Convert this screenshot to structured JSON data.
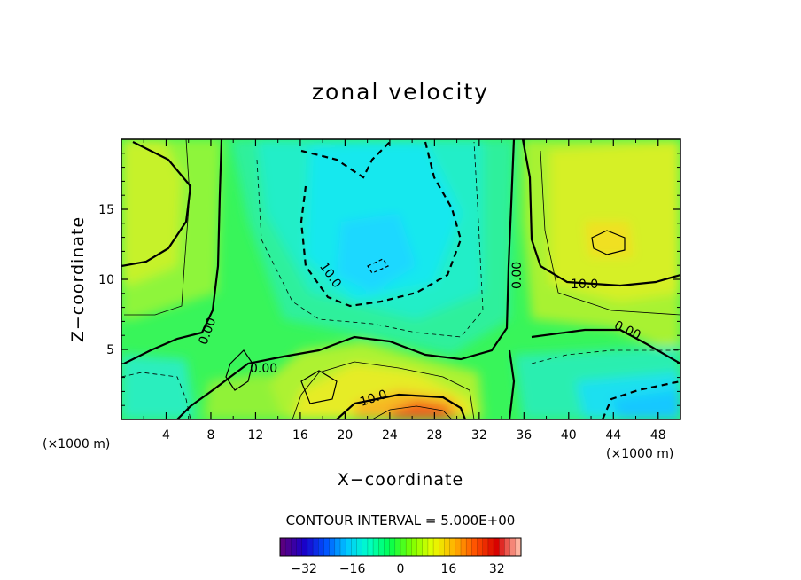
{
  "chart_data": {
    "type": "heatmap",
    "title": "zonal velocity",
    "xlabel": "X−coordinate",
    "ylabel": "Z−coordinate",
    "x_unit_left": "(×1000 m)",
    "x_unit_right": "(×1000 m)",
    "xlim": [
      0,
      50
    ],
    "ylim": [
      0,
      20
    ],
    "x_ticks": [
      "4",
      "8",
      "12",
      "16",
      "20",
      "24",
      "28",
      "32",
      "36",
      "40",
      "44",
      "48"
    ],
    "x_tick_values": [
      4,
      8,
      12,
      16,
      20,
      24,
      28,
      32,
      36,
      40,
      44,
      48
    ],
    "y_ticks": [
      "5",
      "10",
      "15"
    ],
    "y_tick_values": [
      5,
      10,
      15
    ],
    "contour_interval_label": "CONTOUR INTERVAL = 5.000E+00",
    "contour_labels": [
      "10.0",
      "10.0",
      "10.0",
      "0.00",
      "0.00",
      "0.00",
      "0.00"
    ],
    "colorbar": {
      "range": [
        -40,
        40
      ],
      "tick_labels": [
        "−32",
        "−16",
        "0",
        "16",
        "32"
      ],
      "tick_values": [
        -32,
        -16,
        0,
        16,
        32
      ],
      "colormap": [
        "#5a0080",
        "#1a00c8",
        "#0050ff",
        "#00c8ff",
        "#00ffc8",
        "#00ff50",
        "#78ff00",
        "#e6ff00",
        "#ffb400",
        "#ff5000",
        "#d70000",
        "#ffb4a0"
      ]
    },
    "features": [
      {
        "label": "negative core",
        "x": 23,
        "z": 11,
        "value": -18
      },
      {
        "label": "positive core",
        "x": 27,
        "z": 0.5,
        "value": 28
      },
      {
        "label": "positive max",
        "x": 43,
        "z": 13,
        "value": 13
      },
      {
        "label": "negative bottom right",
        "x": 46,
        "z": 1,
        "value": -14
      }
    ]
  }
}
